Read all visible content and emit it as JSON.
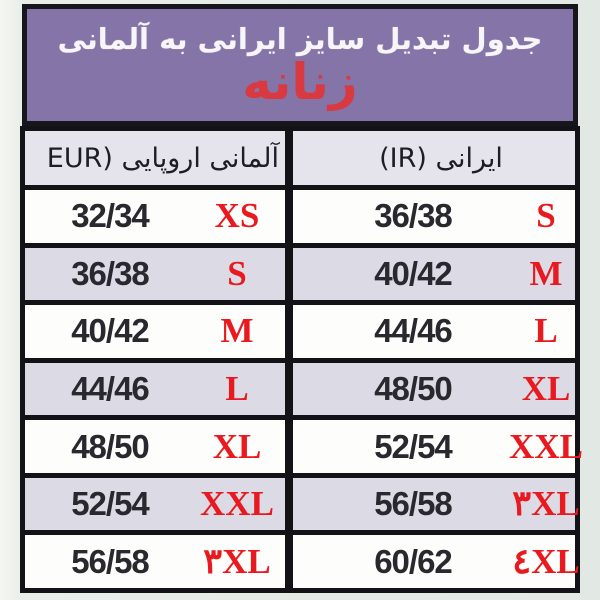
{
  "header": {
    "title": "جدول تبدیل سایز ایرانی به آلمانی",
    "subtitle": "زنانه"
  },
  "table": {
    "col_eur_label": "آلمانی اروپایی (EUR",
    "col_ir_label": "ایرانی (IR)",
    "rows": [
      {
        "eur_num": "32/34",
        "eur_size": "XS",
        "ir_num": "36/38",
        "ir_size": "S"
      },
      {
        "eur_num": "36/38",
        "eur_size": "S",
        "ir_num": "40/42",
        "ir_size": "M"
      },
      {
        "eur_num": "40/42",
        "eur_size": "M",
        "ir_num": "44/46",
        "ir_size": "L"
      },
      {
        "eur_num": "44/46",
        "eur_size": "L",
        "ir_num": "48/50",
        "ir_size": "XL"
      },
      {
        "eur_num": "48/50",
        "eur_size": "XL",
        "ir_num": "52/54",
        "ir_size": "XXL"
      },
      {
        "eur_num": "52/54",
        "eur_size": "XXL",
        "ir_num": "56/58",
        "ir_size": "۳XL"
      },
      {
        "eur_num": "56/58",
        "eur_size": "۳XL",
        "ir_num": "60/62",
        "ir_size": "٤XL"
      }
    ]
  },
  "colors": {
    "banner_purple": "#8474a7",
    "subtitle_red": "#d93940",
    "label_red": "#e8191f",
    "row_alt_lavender": "#dcdbe5",
    "header_cell_gray": "#e5e4ec",
    "border_black": "#131317"
  }
}
